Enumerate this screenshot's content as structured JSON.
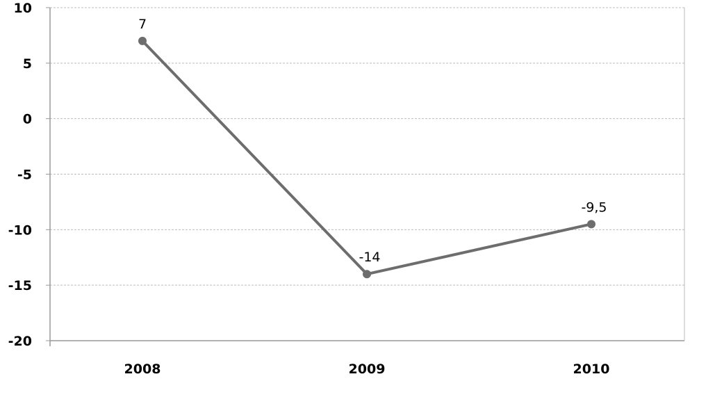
{
  "chart_data": {
    "type": "line",
    "title": "",
    "xlabel": "",
    "ylabel": "",
    "categories": [
      "2008",
      "2009",
      "2010"
    ],
    "series": [
      {
        "values": [
          7,
          -14,
          -9.5
        ],
        "labels": [
          "7",
          "-14",
          "-9,5"
        ],
        "color": "#6d6d6d"
      }
    ],
    "ylim": [
      -20,
      10
    ],
    "yticks": [
      10,
      5,
      0,
      -5,
      -10,
      -15,
      -20
    ],
    "ytick_labels": [
      "10",
      "5",
      "0",
      "-5",
      "-10",
      "-15",
      "-20"
    ],
    "grid": true,
    "legend": "none"
  }
}
